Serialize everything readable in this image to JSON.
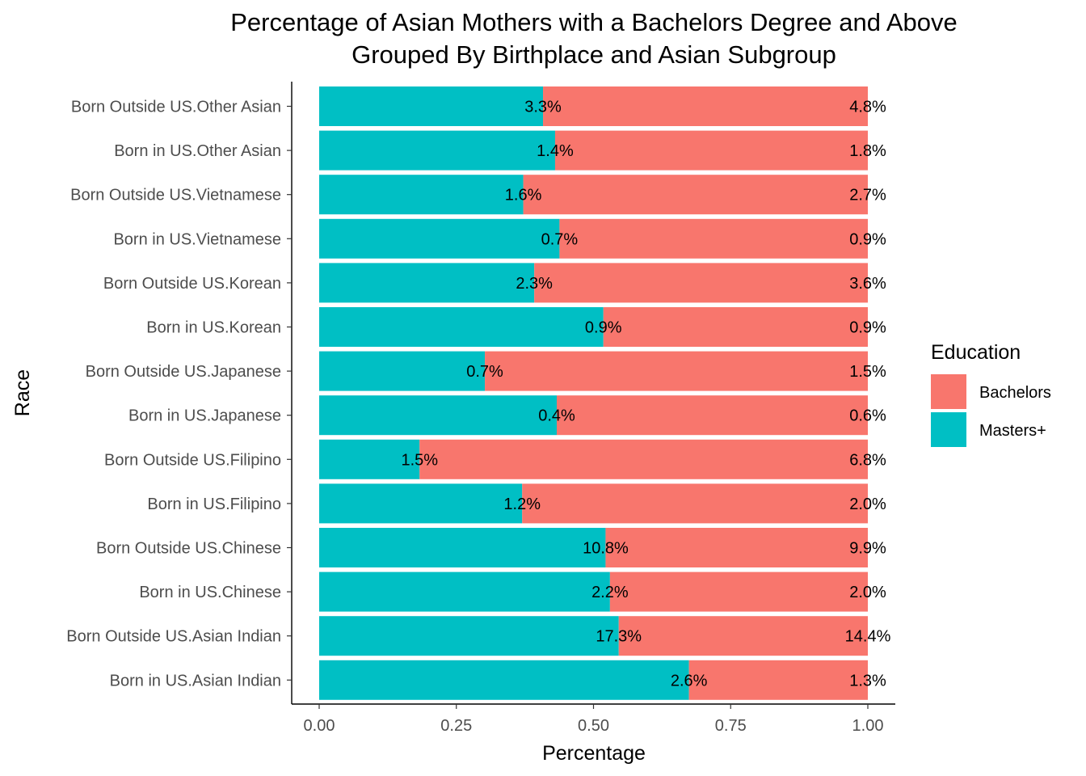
{
  "chart_data": {
    "type": "bar",
    "orientation": "horizontal",
    "stacked": "percent",
    "title": "Percentage of Asian Mothers with a Bachelors Degree and Above",
    "subtitle": "Grouped By Birthplace and Asian Subgroup",
    "xlabel": "Percentage",
    "ylabel": "Race",
    "xlim": [
      0,
      1
    ],
    "xticks": [
      "0.00",
      "0.25",
      "0.50",
      "0.75",
      "1.00"
    ],
    "grid": false,
    "legend": {
      "title": "Education",
      "position": "right"
    },
    "categories": [
      "Born Outside US.Other Asian",
      "Born in US.Other Asian",
      "Born Outside US.Vietnamese",
      "Born in US.Vietnamese",
      "Born Outside US.Korean",
      "Born in US.Korean",
      "Born Outside US.Japanese",
      "Born in US.Japanese",
      "Born Outside US.Filipino",
      "Born in US.Filipino",
      "Born Outside US.Chinese",
      "Born in US.Chinese",
      "Born Outside US.Asian Indian",
      "Born in US.Asian Indian"
    ],
    "series": [
      {
        "name": "Masters+",
        "color": "#00BFC4",
        "values": [
          0.408,
          0.43,
          0.372,
          0.438,
          0.392,
          0.518,
          0.302,
          0.433,
          0.183,
          0.37,
          0.522,
          0.53,
          0.546,
          0.674
        ],
        "labels": [
          "3.3%",
          "1.4%",
          "1.6%",
          "0.7%",
          "2.3%",
          "0.9%",
          "0.7%",
          "0.4%",
          "1.5%",
          "1.2%",
          "10.8%",
          "2.2%",
          "17.3%",
          "2.6%"
        ]
      },
      {
        "name": "Bachelors",
        "color": "#F8766D",
        "values": [
          0.592,
          0.57,
          0.628,
          0.562,
          0.608,
          0.482,
          0.698,
          0.567,
          0.817,
          0.63,
          0.478,
          0.47,
          0.454,
          0.326
        ],
        "labels": [
          "4.8%",
          "1.8%",
          "2.7%",
          "0.9%",
          "3.6%",
          "0.9%",
          "1.5%",
          "0.6%",
          "6.8%",
          "2.0%",
          "9.9%",
          "2.0%",
          "14.4%",
          "1.3%"
        ]
      }
    ]
  }
}
